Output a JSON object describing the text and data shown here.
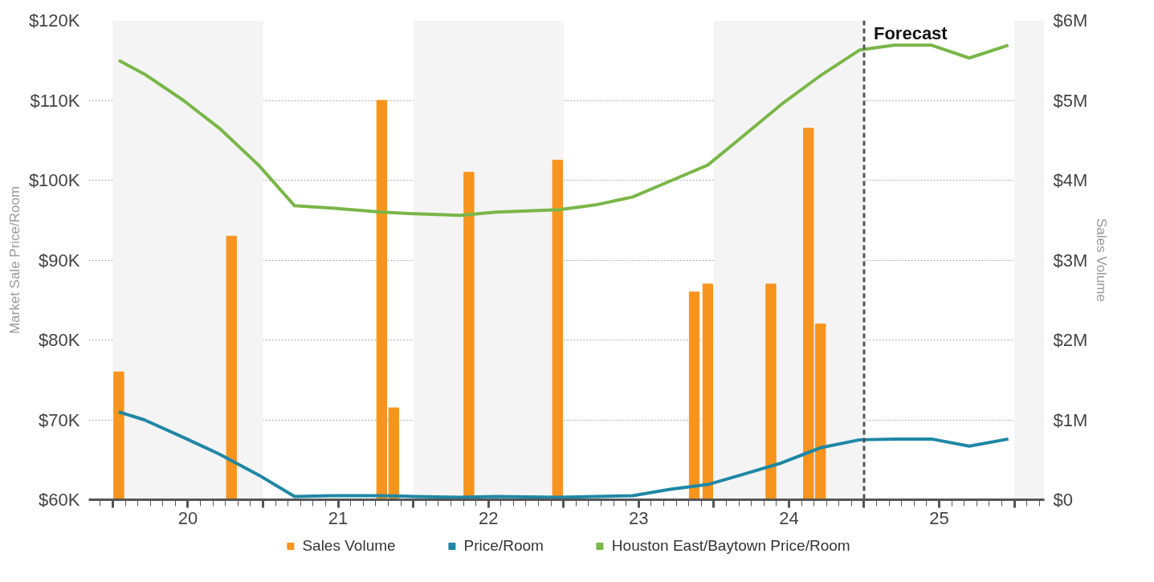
{
  "chart_data": {
    "type": "line",
    "ylabel": "Market Sale Price/Room",
    "y2label": "Sales Volume",
    "xlim": [
      19.34,
      25.7
    ],
    "xticks": [
      {
        "value": 19.5,
        "label": null
      },
      20,
      {
        "value": 20.5,
        "label": null
      },
      21,
      {
        "value": 21.5,
        "label": null
      },
      22,
      {
        "value": 22.5,
        "label": null
      },
      23,
      {
        "value": 23.5,
        "label": null
      },
      24,
      {
        "value": 24.5,
        "label": null
      },
      25,
      {
        "value": 25.5,
        "label": null
      }
    ],
    "ylim": [
      60,
      120
    ],
    "yticks": [
      {
        "value": 60,
        "label": "$60K"
      },
      {
        "value": 70,
        "label": "$70K"
      },
      {
        "value": 80,
        "label": "$80K"
      },
      {
        "value": 90,
        "label": "$90K"
      },
      {
        "value": 100,
        "label": "$100K"
      },
      {
        "value": 110,
        "label": "$110K"
      },
      {
        "value": 120,
        "label": "$120K"
      }
    ],
    "y2lim": [
      0,
      6
    ],
    "y2ticks": [
      {
        "value": 0,
        "label": "$0"
      },
      {
        "value": 1,
        "label": "$1M"
      },
      {
        "value": 2,
        "label": "$2M"
      },
      {
        "value": 3,
        "label": "$3M"
      },
      {
        "value": 4,
        "label": "$4M"
      },
      {
        "value": 5,
        "label": "$5M"
      },
      {
        "value": 6,
        "label": "$6M"
      }
    ],
    "grid": "y",
    "legend": "bottom",
    "line_style": "solid",
    "marker": "none",
    "series": [
      {
        "name": "Sales Volume",
        "type": "bar",
        "axis": "y2",
        "color": "#f7941d",
        "x": [
          19.54,
          20.29,
          21.29,
          21.37,
          21.87,
          22.46,
          23.37,
          23.46,
          23.88,
          24.13,
          24.21
        ],
        "values": [
          1.6,
          3.3,
          5.0,
          1.15,
          4.1,
          4.25,
          2.6,
          2.7,
          2.7,
          4.65,
          2.2
        ]
      },
      {
        "name": "Price/Room",
        "color": "#1f87a5",
        "x": [
          19.54,
          19.71,
          19.97,
          20.21,
          20.47,
          20.71,
          20.96,
          21.29,
          21.51,
          21.81,
          22.05,
          22.47,
          22.71,
          22.96,
          23.21,
          23.46,
          23.7,
          23.95,
          24.21,
          24.47,
          24.7,
          24.95,
          25.2,
          25.46
        ],
        "values": [
          71.0,
          70.0,
          67.8,
          65.7,
          63.1,
          60.4,
          60.5,
          60.5,
          60.4,
          60.3,
          60.4,
          60.3,
          60.4,
          60.5,
          61.3,
          61.9,
          63.2,
          64.6,
          66.5,
          67.5,
          67.6,
          67.6,
          66.7,
          67.6
        ]
      },
      {
        "name": "Houston East/Baytown Price/Room",
        "color": "#7ab648",
        "x": [
          19.54,
          19.71,
          19.97,
          20.21,
          20.47,
          20.71,
          20.96,
          21.29,
          21.51,
          21.81,
          22.05,
          22.47,
          22.71,
          22.96,
          23.21,
          23.46,
          23.7,
          23.95,
          24.21,
          24.47,
          24.7,
          24.95,
          25.2,
          25.46
        ],
        "values": [
          115.0,
          113.3,
          110.0,
          106.5,
          101.9,
          96.8,
          96.5,
          96.0,
          95.8,
          95.6,
          96.0,
          96.3,
          96.9,
          97.9,
          99.9,
          101.9,
          105.6,
          109.5,
          113.1,
          116.3,
          116.9,
          116.9,
          115.3,
          116.9
        ]
      }
    ],
    "bands": [
      {
        "axis": "x",
        "from": 19.5,
        "to": 20.5,
        "color": "#f4f4f4"
      },
      {
        "axis": "x",
        "from": 21.5,
        "to": 22.5,
        "color": "#f4f4f4"
      },
      {
        "axis": "x",
        "from": 23.5,
        "to": 24.5,
        "color": "#f4f4f4"
      },
      {
        "axis": "x",
        "from": 25.5,
        "to": 25.7,
        "color": "#f4f4f4"
      }
    ],
    "ref_lines": [
      {
        "axis": "x",
        "value": 24.5,
        "label": "Forecast",
        "color": "#555555",
        "line_style": "dashed"
      }
    ]
  }
}
